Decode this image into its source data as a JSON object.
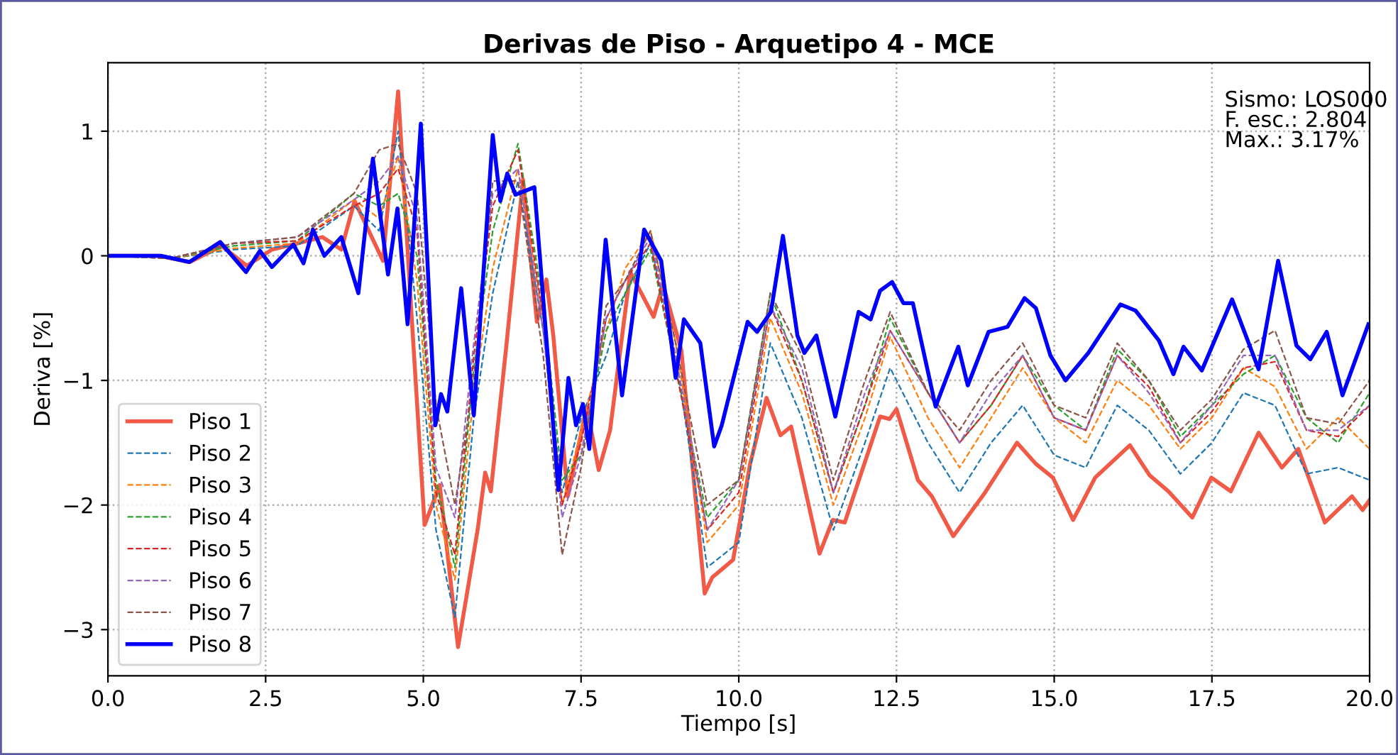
{
  "chart_data": {
    "type": "line",
    "title": "Derivas de Piso - Arquetipo 4 - MCE",
    "xlabel": "Tiempo [s]",
    "ylabel": "Deriva [%]",
    "xlim": [
      0,
      20
    ],
    "xticks": [
      {
        "value": 0,
        "label": "0.0"
      },
      {
        "value": 2.5,
        "label": "2.5"
      },
      {
        "value": 5,
        "label": "5.0"
      },
      {
        "value": 7.5,
        "label": "7.5"
      },
      {
        "value": 10,
        "label": "10.0"
      },
      {
        "value": 12.5,
        "label": "12.5"
      },
      {
        "value": 15,
        "label": "15.0"
      },
      {
        "value": 17.5,
        "label": "17.5"
      },
      {
        "value": 20,
        "label": "20.0"
      }
    ],
    "ylim": [
      -3.37,
      1.55
    ],
    "yticks": [
      {
        "value": -3,
        "label": "−3"
      },
      {
        "value": -2,
        "label": "−2"
      },
      {
        "value": -1,
        "label": "−1"
      },
      {
        "value": 0,
        "label": "0"
      },
      {
        "value": 1,
        "label": "1"
      }
    ],
    "grid": true,
    "legend": "bottom left",
    "marker": "none",
    "annotations": [
      "Sismo: LOS000\nF. esc.: 2.804\nMax.: 3.17%"
    ],
    "series": [
      {
        "name": "Piso 1",
        "color": "#f05a46",
        "line_style": "solid",
        "x": [
          0,
          0.8,
          1.3,
          1.8,
          2.2,
          2.6,
          3.0,
          3.4,
          3.7,
          3.91,
          4.36,
          4.6,
          4.81,
          5.02,
          5.26,
          5.55,
          5.86,
          5.98,
          6.07,
          6.31,
          6.58,
          6.8,
          6.95,
          7.06,
          7.29,
          7.59,
          7.78,
          7.96,
          8.28,
          8.65,
          8.8,
          9.09,
          9.46,
          9.58,
          9.91,
          10.18,
          10.44,
          10.66,
          10.83,
          11.28,
          11.49,
          11.68,
          12.24,
          12.39,
          12.5,
          12.84,
          13.06,
          13.4,
          13.89,
          14.41,
          14.71,
          14.98,
          15.3,
          15.65,
          16.2,
          16.51,
          16.81,
          17.19,
          17.49,
          17.8,
          18.24,
          18.61,
          18.87,
          19.29,
          19.72,
          19.89,
          20.0
        ],
        "values": [
          0,
          0,
          -0.05,
          0.08,
          -0.08,
          0.05,
          0.1,
          0.15,
          0.05,
          0.44,
          -0.04,
          1.32,
          -0.45,
          -2.16,
          -1.84,
          -3.14,
          -2.2,
          -1.74,
          -1.89,
          -0.75,
          0.61,
          -0.53,
          -0.19,
          -0.64,
          -1.93,
          -1.21,
          -1.72,
          -1.4,
          -0.13,
          -0.49,
          -0.23,
          -0.76,
          -2.71,
          -2.58,
          -2.44,
          -1.67,
          -1.14,
          -1.44,
          -1.37,
          -2.39,
          -2.12,
          -2.14,
          -1.29,
          -1.31,
          -1.23,
          -1.8,
          -1.93,
          -2.25,
          -1.91,
          -1.5,
          -1.67,
          -1.78,
          -2.12,
          -1.78,
          -1.52,
          -1.76,
          -1.89,
          -2.1,
          -1.78,
          -1.89,
          -1.42,
          -1.7,
          -1.55,
          -2.14,
          -1.93,
          -2.04,
          -1.96
        ]
      },
      {
        "name": "Piso 2",
        "color": "#1f77b4",
        "line_style": "dashed",
        "x": [
          0,
          1,
          2,
          3,
          3.9,
          4.3,
          4.6,
          4.9,
          5.2,
          5.5,
          5.8,
          6.1,
          6.5,
          6.9,
          7.2,
          7.5,
          7.9,
          8.2,
          8.6,
          9.0,
          9.5,
          10.0,
          10.5,
          11.0,
          11.5,
          12.0,
          12.4,
          13.0,
          13.5,
          14.0,
          14.5,
          15.0,
          15.5,
          16.0,
          16.5,
          17.0,
          17.5,
          18.0,
          18.5,
          19.0,
          19.5,
          20.0
        ],
        "values": [
          0,
          -0.02,
          0.05,
          0.08,
          0.4,
          0.2,
          1.0,
          -0.5,
          -2.2,
          -2.9,
          -1.3,
          -0.3,
          0.6,
          -0.6,
          -1.9,
          -1.3,
          -0.8,
          -0.3,
          0.1,
          -0.8,
          -2.5,
          -2.3,
          -0.7,
          -1.3,
          -2.2,
          -1.5,
          -0.9,
          -1.5,
          -1.9,
          -1.5,
          -1.2,
          -1.6,
          -1.7,
          -1.2,
          -1.4,
          -1.75,
          -1.5,
          -1.1,
          -1.2,
          -1.75,
          -1.7,
          -1.8
        ]
      },
      {
        "name": "Piso 3",
        "color": "#ff7f0e",
        "line_style": "dashed",
        "x": [
          0,
          1,
          2,
          3,
          3.9,
          4.3,
          4.6,
          4.9,
          5.2,
          5.5,
          5.8,
          6.1,
          6.5,
          6.9,
          7.2,
          7.5,
          7.9,
          8.2,
          8.6,
          9.0,
          9.5,
          10.0,
          10.5,
          11.0,
          11.5,
          12.0,
          12.4,
          13.0,
          13.5,
          14.0,
          14.5,
          15.0,
          15.5,
          16.0,
          16.5,
          17.0,
          17.5,
          18.0,
          18.5,
          19.0,
          19.5,
          20.0
        ],
        "values": [
          0,
          -0.02,
          0.06,
          0.1,
          0.45,
          0.3,
          0.8,
          -0.2,
          -2.0,
          -2.6,
          -1.1,
          -0.1,
          0.7,
          -0.5,
          -2.0,
          -1.4,
          -0.6,
          -0.1,
          0.2,
          -0.7,
          -2.3,
          -2.0,
          -0.5,
          -1.1,
          -2.0,
          -1.3,
          -0.65,
          -1.3,
          -1.7,
          -1.3,
          -0.9,
          -1.3,
          -1.5,
          -1.0,
          -1.2,
          -1.55,
          -1.3,
          -0.9,
          -1.05,
          -1.55,
          -1.3,
          -1.55
        ]
      },
      {
        "name": "Piso 4",
        "color": "#2ca02c",
        "line_style": "dashed",
        "x": [
          0,
          1,
          2,
          3,
          3.9,
          4.3,
          4.6,
          4.9,
          5.2,
          5.5,
          5.8,
          6.1,
          6.5,
          6.9,
          7.2,
          7.5,
          7.9,
          8.2,
          8.6,
          9.0,
          9.5,
          10.0,
          10.5,
          11.0,
          11.5,
          12.0,
          12.4,
          13.0,
          13.5,
          14.0,
          14.5,
          15.0,
          15.5,
          16.0,
          16.5,
          17.0,
          17.5,
          18.0,
          18.5,
          19.0,
          19.5,
          20.0
        ],
        "values": [
          0,
          -0.02,
          0.08,
          0.12,
          0.5,
          0.4,
          0.5,
          0.0,
          -1.8,
          -2.5,
          -0.9,
          0.2,
          0.9,
          -0.4,
          -1.8,
          -1.6,
          -0.6,
          -0.3,
          0.05,
          -0.9,
          -2.1,
          -1.8,
          -0.3,
          -1.0,
          -1.9,
          -1.2,
          -0.5,
          -1.1,
          -1.5,
          -1.2,
          -0.8,
          -1.2,
          -1.4,
          -0.75,
          -1.0,
          -1.45,
          -1.2,
          -0.95,
          -0.8,
          -1.3,
          -1.5,
          -1.1
        ]
      },
      {
        "name": "Piso 5",
        "color": "#d62728",
        "line_style": "dashed",
        "x": [
          0,
          1,
          2,
          3,
          3.9,
          4.3,
          4.6,
          4.9,
          5.2,
          5.5,
          5.8,
          6.1,
          6.5,
          6.9,
          7.2,
          7.5,
          7.9,
          8.2,
          8.6,
          9.0,
          9.5,
          10.0,
          10.5,
          11.0,
          11.5,
          12.0,
          12.4,
          13.0,
          13.5,
          14.0,
          14.5,
          15.0,
          15.5,
          16.0,
          16.5,
          17.0,
          17.5,
          18.0,
          18.5,
          19.0,
          19.5,
          20.0
        ],
        "values": [
          0,
          -0.02,
          0.1,
          0.12,
          0.4,
          0.5,
          0.7,
          0.2,
          -1.9,
          -2.4,
          -0.8,
          0.4,
          0.85,
          -0.5,
          -2.0,
          -1.5,
          -0.5,
          -0.2,
          0.1,
          -0.9,
          -2.2,
          -1.9,
          -0.4,
          -1.0,
          -1.9,
          -1.2,
          -0.6,
          -1.1,
          -1.5,
          -1.2,
          -0.8,
          -1.3,
          -1.4,
          -0.8,
          -1.05,
          -1.5,
          -1.25,
          -0.9,
          -0.85,
          -1.4,
          -1.45,
          -1.2
        ]
      },
      {
        "name": "Piso 6",
        "color": "#9467bd",
        "line_style": "dashed",
        "x": [
          0,
          1,
          2,
          3,
          3.9,
          4.3,
          4.6,
          4.9,
          5.2,
          5.5,
          5.8,
          6.1,
          6.5,
          6.9,
          7.2,
          7.5,
          7.9,
          8.2,
          8.6,
          9.0,
          9.5,
          10.0,
          10.5,
          11.0,
          11.5,
          12.0,
          12.4,
          13.0,
          13.5,
          14.0,
          14.5,
          15.0,
          15.5,
          16.0,
          16.5,
          17.0,
          17.5,
          18.0,
          18.5,
          19.0,
          19.5,
          20.0
        ],
        "values": [
          0,
          -0.02,
          0.1,
          0.15,
          0.45,
          0.6,
          0.8,
          0.3,
          -1.7,
          -2.1,
          -0.7,
          0.5,
          0.7,
          -0.6,
          -2.1,
          -1.6,
          -0.5,
          -0.2,
          0.15,
          -0.8,
          -2.2,
          -1.8,
          -0.4,
          -0.9,
          -1.9,
          -1.1,
          -0.6,
          -1.1,
          -1.5,
          -1.1,
          -0.8,
          -1.3,
          -1.4,
          -0.8,
          -1.1,
          -1.5,
          -1.2,
          -0.8,
          -0.8,
          -1.4,
          -1.4,
          -1.2
        ]
      },
      {
        "name": "Piso 7",
        "color": "#8c564b",
        "line_style": "dashed",
        "x": [
          0,
          1,
          2,
          3,
          3.9,
          4.3,
          4.6,
          4.9,
          5.2,
          5.5,
          5.8,
          6.1,
          6.5,
          6.9,
          7.2,
          7.5,
          7.9,
          8.2,
          8.6,
          9.0,
          9.5,
          10.0,
          10.5,
          11.0,
          11.5,
          12.0,
          12.4,
          13.0,
          13.5,
          14.0,
          14.5,
          15.0,
          15.5,
          16.0,
          16.5,
          17.0,
          17.5,
          18.0,
          18.5,
          19.0,
          19.5,
          20.0
        ],
        "values": [
          0,
          -0.02,
          0.1,
          0.15,
          0.5,
          0.85,
          0.9,
          0.5,
          -1.2,
          -2.0,
          -1.0,
          0.6,
          0.6,
          -0.8,
          -2.4,
          -1.7,
          -0.4,
          -0.2,
          0.2,
          -0.7,
          -2.0,
          -1.8,
          -0.3,
          -0.8,
          -1.8,
          -1.0,
          -0.45,
          -1.1,
          -1.4,
          -1.0,
          -0.7,
          -1.2,
          -1.3,
          -0.7,
          -1.0,
          -1.4,
          -1.15,
          -0.75,
          -0.6,
          -1.3,
          -1.35,
          -1.0
        ]
      },
      {
        "name": "Piso 8",
        "color": "#0000ff",
        "line_style": "solid",
        "x": [
          0,
          0.84,
          1.29,
          1.78,
          2.19,
          2.41,
          2.6,
          2.94,
          3.1,
          3.25,
          3.43,
          3.7,
          3.97,
          4.2,
          4.44,
          4.59,
          4.75,
          4.96,
          5.19,
          5.28,
          5.38,
          5.6,
          5.8,
          6.1,
          6.22,
          6.33,
          6.46,
          6.76,
          7.14,
          7.3,
          7.42,
          7.53,
          7.63,
          7.89,
          8.15,
          8.5,
          8.77,
          9.0,
          9.13,
          9.39,
          9.61,
          9.73,
          10.14,
          10.29,
          10.51,
          10.7,
          10.93,
          11.04,
          11.23,
          11.53,
          11.9,
          12.09,
          12.24,
          12.43,
          12.61,
          12.76,
          13.12,
          13.48,
          13.63,
          13.96,
          14.26,
          14.53,
          14.71,
          14.94,
          15.18,
          15.54,
          16.05,
          16.29,
          16.66,
          16.89,
          17.05,
          17.34,
          17.82,
          18.24,
          18.55,
          18.84,
          19.06,
          19.32,
          19.57,
          19.98
        ],
        "values": [
          0,
          0,
          -0.05,
          0.11,
          -0.13,
          0.04,
          -0.09,
          0.09,
          -0.06,
          0.21,
          0,
          0.15,
          -0.3,
          0.78,
          -0.15,
          0.38,
          -0.55,
          1.06,
          -1.36,
          -1.11,
          -1.25,
          -0.26,
          -1.28,
          0.97,
          0.44,
          0.66,
          0.49,
          0.55,
          -1.88,
          -0.98,
          -1.36,
          -1.19,
          -1.55,
          0.13,
          -1.12,
          0.21,
          -0.04,
          -0.98,
          -0.51,
          -0.7,
          -1.53,
          -1.36,
          -0.53,
          -0.61,
          -0.45,
          0.16,
          -0.64,
          -0.78,
          -0.64,
          -1.29,
          -0.45,
          -0.51,
          -0.28,
          -0.21,
          -0.38,
          -0.38,
          -1.21,
          -0.73,
          -1.04,
          -0.61,
          -0.57,
          -0.34,
          -0.42,
          -0.8,
          -1.0,
          -0.78,
          -0.39,
          -0.44,
          -0.68,
          -0.95,
          -0.73,
          -0.92,
          -0.35,
          -0.91,
          -0.04,
          -0.72,
          -0.83,
          -0.61,
          -1.12,
          -0.55
        ]
      }
    ]
  }
}
